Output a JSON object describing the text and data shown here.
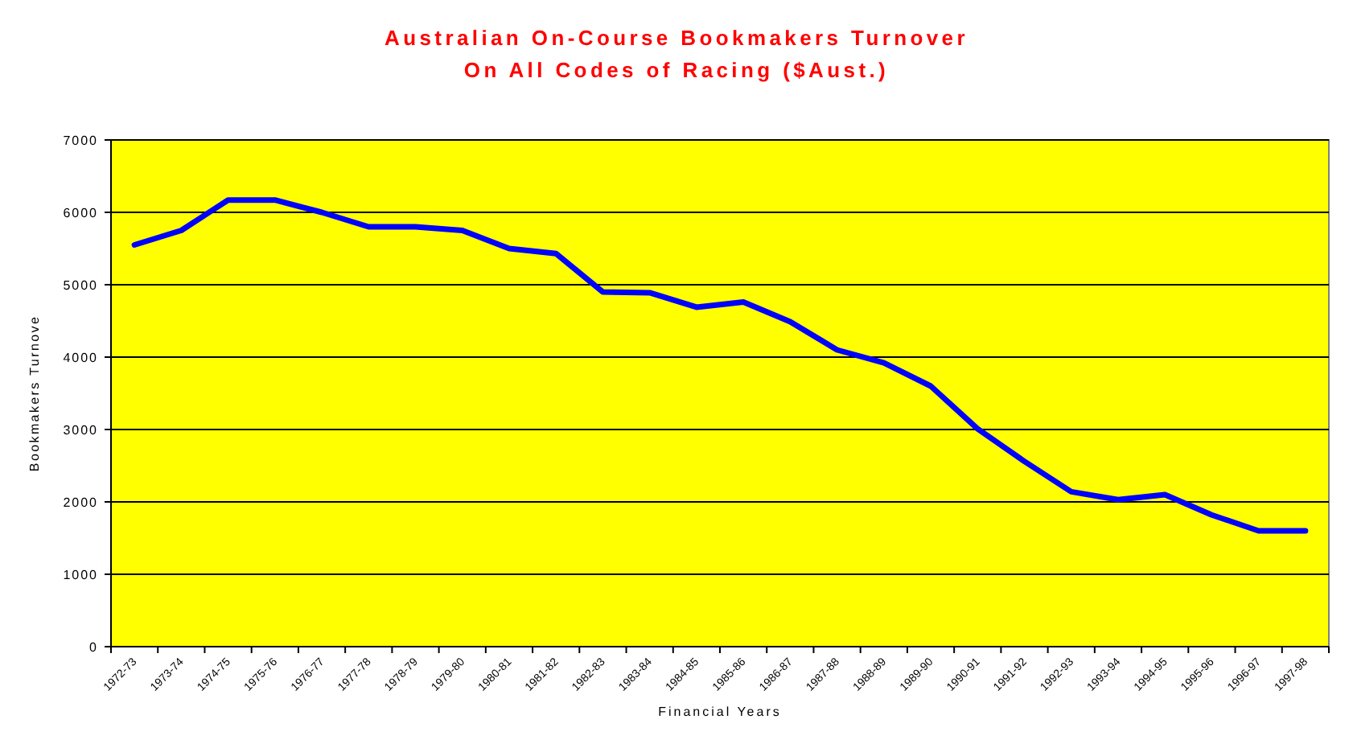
{
  "chart_data": {
    "type": "line",
    "title": "Australian On-Course Bookmakers Turnover\nOn All Codes of Racing ($Aust.)",
    "xlabel": "Financial Years",
    "ylabel": "Bookmakers Turnove",
    "categories": [
      "1972-73",
      "1973-74",
      "1974-75",
      "1975-76",
      "1976-77",
      "1977-78",
      "1978-79",
      "1979-80",
      "1980-81",
      "1981-82",
      "1982-83",
      "1983-84",
      "1984-85",
      "1985-86",
      "1986-87",
      "1987-88",
      "1988-89",
      "1989-90",
      "1990-91",
      "1991-92",
      "1992-93",
      "1993-94",
      "1994-95",
      "1995-96",
      "1996-97",
      "1997-98"
    ],
    "series": [
      {
        "color": "#0000ff",
        "values": [
          5550,
          5750,
          6170,
          6170,
          6000,
          5800,
          5800,
          5750,
          5500,
          5430,
          4900,
          4890,
          4690,
          4760,
          4490,
          4100,
          3920,
          3600,
          3010,
          2560,
          2140,
          2030,
          2100,
          1820,
          1600,
          1600
        ]
      }
    ],
    "ylim": [
      0,
      7000
    ],
    "yticks": [
      0,
      1000,
      2000,
      3000,
      4000,
      5000,
      6000,
      7000
    ],
    "grid": "y",
    "marker": "none",
    "line_style": "solid"
  }
}
